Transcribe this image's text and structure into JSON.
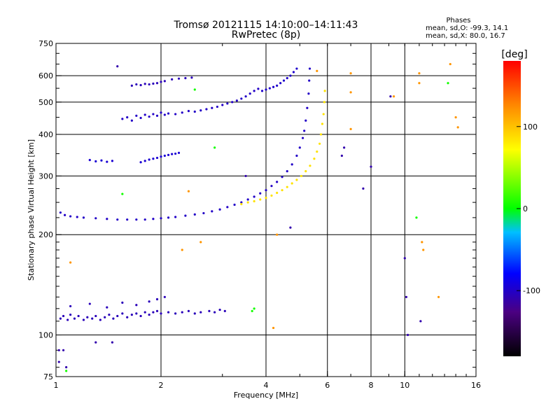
{
  "chart_data": {
    "type": "scatter",
    "title": "Tromsø 20121115 14:10:00–14:11:43",
    "subtitle": "RwPretec (8p)",
    "xlabel": "Frequency [MHz]",
    "ylabel": "Stationary phase Virtual Height [km]",
    "x_scale": "log",
    "y_scale": "log",
    "xlim": [
      1,
      16
    ],
    "ylim": [
      75,
      750
    ],
    "x_ticks": [
      1,
      2,
      4,
      6,
      8,
      10,
      16
    ],
    "x_ticks_labels": [
      "1",
      "2",
      "4",
      "6",
      "8",
      "10",
      "16"
    ],
    "x_grid": [
      2,
      4,
      6,
      8,
      10
    ],
    "y_ticks": [
      75,
      100,
      200,
      300,
      400,
      500,
      600,
      750
    ],
    "y_ticks_labels": [
      "75",
      "100",
      "200",
      "300",
      "400",
      "500",
      "600",
      "750"
    ],
    "y_grid": [
      100,
      200,
      300,
      400,
      500,
      600
    ],
    "stats_header": "Phases",
    "stats_line1": "mean, sd,O: -99.3, 14.1",
    "stats_line2": "mean, sd,X:  80.0, 16.7",
    "colorbar": {
      "label": "[deg]",
      "min": -180,
      "max": 180,
      "ticks": [
        100,
        0,
        -100
      ],
      "ticks_labels": [
        "100",
        "0",
        "-100"
      ]
    },
    "series": [
      {
        "kind": "O-mode E-region echoes (~110 km)",
        "phase_deg": -105,
        "points": [
          [
            1.03,
            112
          ],
          [
            1.05,
            114
          ],
          [
            1.08,
            111
          ],
          [
            1.1,
            115
          ],
          [
            1.13,
            112
          ],
          [
            1.16,
            114
          ],
          [
            1.2,
            111
          ],
          [
            1.23,
            113
          ],
          [
            1.27,
            112
          ],
          [
            1.3,
            114
          ],
          [
            1.34,
            111
          ],
          [
            1.38,
            113
          ],
          [
            1.42,
            115
          ],
          [
            1.46,
            112
          ],
          [
            1.5,
            114
          ],
          [
            1.55,
            116
          ],
          [
            1.6,
            113
          ],
          [
            1.65,
            115
          ],
          [
            1.7,
            116
          ],
          [
            1.75,
            114
          ],
          [
            1.8,
            117
          ],
          [
            1.85,
            115
          ],
          [
            1.9,
            117
          ],
          [
            1.95,
            118
          ],
          [
            2.0,
            116
          ],
          [
            2.1,
            117
          ],
          [
            2.2,
            116
          ],
          [
            2.3,
            117
          ],
          [
            2.4,
            118
          ],
          [
            2.5,
            116
          ],
          [
            2.6,
            117
          ],
          [
            2.75,
            118
          ],
          [
            2.85,
            117
          ],
          [
            2.95,
            119
          ],
          [
            3.05,
            118
          ],
          [
            1.1,
            122
          ],
          [
            1.25,
            124
          ],
          [
            1.4,
            121
          ],
          [
            1.55,
            125
          ],
          [
            1.7,
            123
          ],
          [
            1.85,
            126
          ],
          [
            1.95,
            128
          ],
          [
            2.05,
            130
          ]
        ]
      },
      {
        "kind": "O-mode F-trace",
        "phase_deg": -100,
        "points": [
          [
            1.03,
            233
          ],
          [
            1.06,
            229
          ],
          [
            1.1,
            227
          ],
          [
            1.15,
            226
          ],
          [
            1.2,
            225
          ],
          [
            1.3,
            224
          ],
          [
            1.4,
            223
          ],
          [
            1.5,
            222
          ],
          [
            1.6,
            222
          ],
          [
            1.7,
            222
          ],
          [
            1.8,
            222
          ],
          [
            1.9,
            223
          ],
          [
            2.0,
            224
          ],
          [
            2.1,
            225
          ],
          [
            2.2,
            226
          ],
          [
            2.35,
            228
          ],
          [
            2.5,
            230
          ],
          [
            2.65,
            232
          ],
          [
            2.8,
            235
          ],
          [
            2.95,
            238
          ],
          [
            3.1,
            242
          ],
          [
            3.25,
            246
          ],
          [
            3.4,
            250
          ],
          [
            3.55,
            255
          ],
          [
            3.7,
            260
          ],
          [
            3.85,
            266
          ],
          [
            4.0,
            272
          ],
          [
            4.15,
            280
          ],
          [
            4.3,
            288
          ],
          [
            4.45,
            298
          ],
          [
            4.6,
            310
          ],
          [
            4.75,
            325
          ],
          [
            4.9,
            345
          ],
          [
            5.0,
            365
          ],
          [
            5.1,
            390
          ],
          [
            5.15,
            410
          ],
          [
            5.2,
            440
          ],
          [
            5.25,
            480
          ],
          [
            5.3,
            530
          ],
          [
            5.32,
            580
          ],
          [
            5.34,
            630
          ]
        ]
      },
      {
        "kind": "X-mode F-trace",
        "phase_deg": 85,
        "points": [
          [
            3.4,
            247
          ],
          [
            3.55,
            250
          ],
          [
            3.7,
            252
          ],
          [
            3.85,
            255
          ],
          [
            4.0,
            258
          ],
          [
            4.15,
            262
          ],
          [
            4.3,
            267
          ],
          [
            4.45,
            272
          ],
          [
            4.6,
            278
          ],
          [
            4.75,
            285
          ],
          [
            4.9,
            292
          ],
          [
            5.05,
            300
          ],
          [
            5.2,
            310
          ],
          [
            5.35,
            322
          ],
          [
            5.5,
            338
          ],
          [
            5.6,
            355
          ],
          [
            5.7,
            375
          ],
          [
            5.75,
            400
          ],
          [
            5.8,
            430
          ],
          [
            5.85,
            460
          ],
          [
            5.88,
            500
          ],
          [
            5.9,
            540
          ]
        ]
      },
      {
        "kind": "Multiple-hop echoes (~330 km)",
        "phase_deg": -95,
        "points": [
          [
            1.25,
            335
          ],
          [
            1.3,
            332
          ],
          [
            1.35,
            334
          ],
          [
            1.4,
            331
          ],
          [
            1.45,
            333
          ],
          [
            1.75,
            330
          ],
          [
            1.8,
            333
          ],
          [
            1.85,
            336
          ],
          [
            1.9,
            338
          ],
          [
            1.95,
            340
          ],
          [
            2.0,
            343
          ],
          [
            2.05,
            345
          ],
          [
            2.1,
            347
          ],
          [
            2.15,
            349
          ],
          [
            2.2,
            350
          ],
          [
            2.25,
            352
          ]
        ]
      },
      {
        "kind": "Multiple-hop echoes (~450 km)",
        "phase_deg": -100,
        "points": [
          [
            1.55,
            445
          ],
          [
            1.6,
            450
          ],
          [
            1.65,
            440
          ],
          [
            1.7,
            455
          ],
          [
            1.75,
            448
          ],
          [
            1.8,
            458
          ],
          [
            1.85,
            452
          ],
          [
            1.9,
            460
          ],
          [
            1.95,
            455
          ],
          [
            2.0,
            465
          ],
          [
            2.05,
            458
          ],
          [
            2.1,
            462
          ],
          [
            2.2,
            460
          ],
          [
            2.3,
            465
          ],
          [
            2.4,
            470
          ],
          [
            2.5,
            468
          ],
          [
            2.6,
            472
          ],
          [
            2.7,
            476
          ],
          [
            2.8,
            480
          ],
          [
            2.9,
            484
          ],
          [
            3.0,
            490
          ],
          [
            3.1,
            495
          ],
          [
            3.2,
            500
          ],
          [
            3.3,
            505
          ],
          [
            3.4,
            512
          ],
          [
            3.5,
            520
          ],
          [
            3.6,
            530
          ],
          [
            3.7,
            540
          ],
          [
            3.8,
            548
          ]
        ]
      },
      {
        "kind": "Multiple-hop echoes (~570 km)",
        "phase_deg": -105,
        "points": [
          [
            1.65,
            560
          ],
          [
            1.7,
            565
          ],
          [
            1.75,
            562
          ],
          [
            1.8,
            567
          ],
          [
            1.85,
            565
          ],
          [
            1.9,
            568
          ],
          [
            1.95,
            570
          ],
          [
            2.0,
            575
          ],
          [
            2.05,
            578
          ],
          [
            2.15,
            585
          ],
          [
            2.25,
            588
          ],
          [
            2.35,
            590
          ],
          [
            2.45,
            592
          ]
        ]
      },
      {
        "kind": "High-frequency multi-hop echoes",
        "phase_deg": -98,
        "points": [
          [
            3.9,
            540
          ],
          [
            4.0,
            545
          ],
          [
            4.1,
            550
          ],
          [
            4.2,
            555
          ],
          [
            4.3,
            560
          ],
          [
            4.4,
            570
          ],
          [
            4.5,
            580
          ],
          [
            4.6,
            590
          ],
          [
            4.7,
            600
          ],
          [
            4.8,
            615
          ],
          [
            4.9,
            630
          ]
        ]
      },
      {
        "kind": "Scattered points",
        "phase_deg": 120,
        "points": [
          [
            5.6,
            620
          ],
          [
            7.0,
            610
          ],
          [
            7.0,
            535
          ],
          [
            7.0,
            415
          ],
          [
            9.3,
            520
          ],
          [
            11.0,
            610
          ],
          [
            11.0,
            570
          ],
          [
            11.2,
            190
          ],
          [
            11.3,
            180
          ],
          [
            12.5,
            130
          ],
          [
            13.5,
            650
          ],
          [
            14.0,
            450
          ],
          [
            14.2,
            420
          ],
          [
            2.4,
            270
          ],
          [
            2.6,
            190
          ],
          [
            2.3,
            180
          ],
          [
            4.3,
            200
          ],
          [
            4.2,
            105
          ],
          [
            1.1,
            165
          ]
        ]
      },
      {
        "kind": "Scattered points (negative phase)",
        "phase_deg": -110,
        "points": [
          [
            10.0,
            170
          ],
          [
            10.1,
            130
          ],
          [
            10.2,
            100
          ],
          [
            11.1,
            110
          ],
          [
            9.1,
            520
          ],
          [
            8.0,
            320
          ],
          [
            7.6,
            275
          ],
          [
            6.6,
            345
          ],
          [
            6.7,
            365
          ],
          [
            4.7,
            210
          ],
          [
            3.5,
            300
          ],
          [
            1.5,
            640
          ],
          [
            1.45,
            95
          ],
          [
            1.3,
            95
          ],
          [
            1.02,
            90
          ],
          [
            1.02,
            83
          ],
          [
            1.07,
            80
          ],
          [
            1.05,
            90
          ]
        ]
      },
      {
        "kind": "Scattered points (green/cyan)",
        "phase_deg": 5,
        "points": [
          [
            3.7,
            120
          ],
          [
            3.65,
            118
          ],
          [
            1.55,
            265
          ],
          [
            2.5,
            545
          ],
          [
            2.85,
            365
          ],
          [
            1.07,
            78
          ],
          [
            10.8,
            225
          ],
          [
            13.3,
            570
          ]
        ]
      }
    ]
  }
}
